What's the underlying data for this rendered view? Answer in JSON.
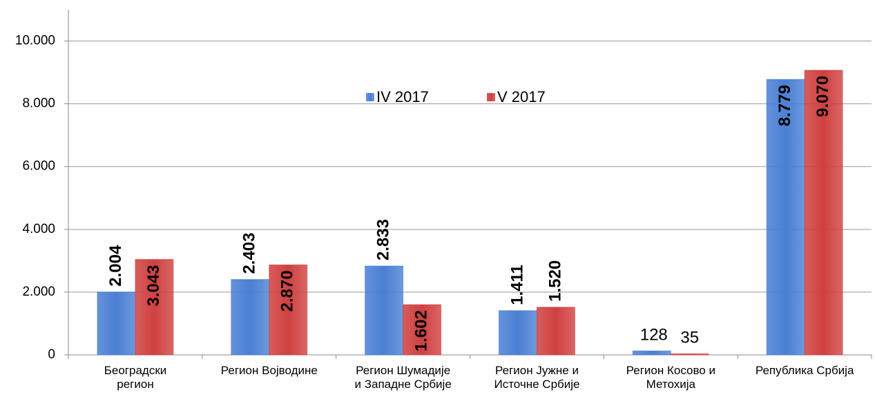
{
  "chart_data": {
    "type": "bar",
    "categories": [
      "Београдски\nрегион",
      "Регион Војводине",
      "Регион Шумадије\nи Западне Србије",
      "Регион Јужне и\nИсточне Србије",
      "Регион Косово и\nМетохија",
      "Република Србија"
    ],
    "series": [
      {
        "name": "IV 2017",
        "color": "#4a7fd4",
        "values": [
          2004,
          2403,
          2833,
          1411,
          128,
          8779
        ],
        "value_labels": [
          "2.004",
          "2.403",
          "2.833",
          "1.411",
          "128",
          "8.779"
        ]
      },
      {
        "name": "V 2017",
        "color": "#d04040",
        "values": [
          3043,
          2870,
          1602,
          1520,
          35,
          9070
        ],
        "value_labels": [
          "3.043",
          "2.870",
          "1.602",
          "1.520",
          "35",
          "9.070"
        ]
      }
    ],
    "ylim": [
      0,
      11000
    ],
    "yticks": [
      0,
      {
        "value": 2000,
        "label": "2.000"
      },
      {
        "value": 4000,
        "label": "4.000"
      },
      {
        "value": 6000,
        "label": "6.000"
      },
      {
        "value": 8000,
        "label": "8.000"
      },
      {
        "value": 10000,
        "label": "10.000"
      }
    ],
    "grid": true
  }
}
